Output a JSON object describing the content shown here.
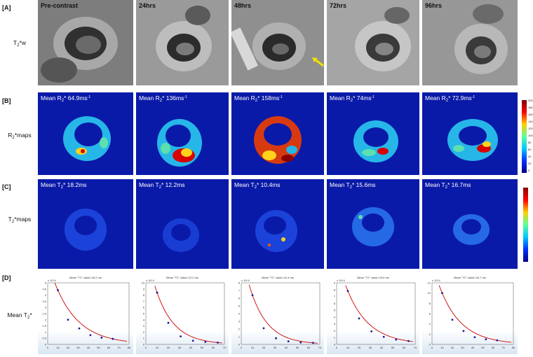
{
  "panels": {
    "A": "[A]",
    "B": "[B]",
    "C": "[C]",
    "D": "[D]"
  },
  "row_labels": {
    "t2w": {
      "main": "T",
      "sub": "2",
      "rest": "*w"
    },
    "r2maps": {
      "main": "R",
      "sub": "2",
      "rest": "*maps"
    },
    "t2maps": {
      "main": "T",
      "sub": "2",
      "rest": "*maps"
    },
    "meant2": {
      "main": "Mean T",
      "sub": "2",
      "rest": "*"
    }
  },
  "timepoints": [
    "Pre-contrast",
    "24hrs",
    "48hrs",
    "72hrs",
    "96hrs"
  ],
  "r2_means": [
    {
      "pre": "Mean R",
      "sub": "2",
      "mid": "* 64.9ms",
      "sup": "-1"
    },
    {
      "pre": "Mean R",
      "sub": "2",
      "mid": "* 136ms",
      "sup": "-1"
    },
    {
      "pre": "Mean R",
      "sub": "2",
      "mid": "* 158ms",
      "sup": "-1"
    },
    {
      "pre": "Mean R",
      "sub": "2",
      "mid": "* 74ms",
      "sup": "-1"
    },
    {
      "pre": "Mean R",
      "sub": "2",
      "mid": "* 72.9ms",
      "sup": "-1"
    }
  ],
  "t2_means": [
    {
      "pre": "Mean T",
      "sub": "2",
      "mid": "* 18.2ms"
    },
    {
      "pre": "Mean T",
      "sub": "2",
      "mid": "* 12.2ms"
    },
    {
      "pre": "Mean T",
      "sub": "2",
      "mid": "* 10.4ms"
    },
    {
      "pre": "Mean T",
      "sub": "2",
      "mid": "* 15.6ms"
    },
    {
      "pre": "Mean T",
      "sub": "2",
      "mid": "* 16.7ms"
    }
  ],
  "r2_colorbar_ticks": [
    "200",
    "180",
    "160",
    "140",
    "120",
    "100",
    "80",
    "60",
    "40",
    "20",
    "0"
  ],
  "colors": {
    "map_background": "#0a1aa8",
    "fit_curve": "#cc0000",
    "points": "#1a1a9a",
    "arrow": "#f2e000"
  },
  "chart_data": [
    {
      "type": "scatter",
      "title": "Mean \"T2\" value=18.2 ms",
      "y_exponent": "x 10^4",
      "xlim": [
        0,
        80
      ],
      "ylim": [
        0,
        5
      ],
      "x_ticks": [
        0,
        10,
        20,
        30,
        40,
        50,
        60,
        70,
        80
      ],
      "y_ticks": [
        0,
        0.5,
        1,
        1.5,
        2,
        2.5,
        3,
        3.5,
        4,
        4.5,
        5
      ],
      "x": [
        10,
        20,
        31,
        42,
        53,
        64
      ],
      "y": [
        4.4,
        2.0,
        1.3,
        0.75,
        0.55,
        0.45
      ],
      "fit": "exponential decay"
    },
    {
      "type": "scatter",
      "title": "Mean \"T2\" value=12.2 ms",
      "y_exponent": "x 10^4",
      "xlim": [
        0,
        70
      ],
      "ylim": [
        0,
        10
      ],
      "x_ticks": [
        0,
        10,
        20,
        30,
        40,
        50,
        60,
        70
      ],
      "y_ticks": [
        0,
        1,
        2,
        3,
        4,
        5,
        6,
        7,
        8,
        9,
        10
      ],
      "x": [
        10,
        20,
        31,
        42,
        53,
        64
      ],
      "y": [
        8.4,
        3.5,
        1.3,
        0.6,
        0.4,
        0.3
      ],
      "fit": "exponential decay"
    },
    {
      "type": "scatter",
      "title": "Mean \"T2\" value=10.4 ms",
      "y_exponent": "x 10^4",
      "xlim": [
        0,
        70
      ],
      "ylim": [
        0,
        8
      ],
      "x_ticks": [
        0,
        10,
        20,
        30,
        40,
        50,
        60,
        70
      ],
      "y_ticks": [
        0,
        1,
        2,
        3,
        4,
        5,
        6,
        7,
        8
      ],
      "x": [
        10,
        20,
        31,
        42,
        53,
        64
      ],
      "y": [
        6.4,
        2.1,
        0.8,
        0.4,
        0.25,
        0.2
      ],
      "fit": "exponential decay"
    },
    {
      "type": "scatter",
      "title": "Mean \"T2\" value=15.6 ms",
      "y_exponent": "x 10^4",
      "xlim": [
        0,
        70
      ],
      "ylim": [
        0,
        9
      ],
      "x_ticks": [
        0,
        10,
        20,
        30,
        40,
        50,
        60,
        70
      ],
      "y_ticks": [
        0,
        1,
        2,
        3,
        4,
        5,
        6,
        7,
        8,
        9
      ],
      "x": [
        10,
        20,
        31,
        42,
        53,
        64
      ],
      "y": [
        7.8,
        3.8,
        1.9,
        1.1,
        0.7,
        0.5
      ],
      "fit": "exponential decay"
    },
    {
      "type": "scatter",
      "title": "Mean \"T2\" value=16.7 ms",
      "y_exponent": "x 10^4",
      "xlim": [
        0,
        80
      ],
      "ylim": [
        0,
        12
      ],
      "x_ticks": [
        0,
        10,
        20,
        30,
        40,
        50,
        60,
        70,
        80
      ],
      "y_ticks": [
        0,
        2,
        4,
        6,
        8,
        10,
        12
      ],
      "x": [
        10,
        20,
        31,
        42,
        53,
        64
      ],
      "y": [
        10.0,
        4.8,
        2.6,
        1.4,
        1.0,
        0.8
      ],
      "fit": "exponential decay"
    }
  ]
}
